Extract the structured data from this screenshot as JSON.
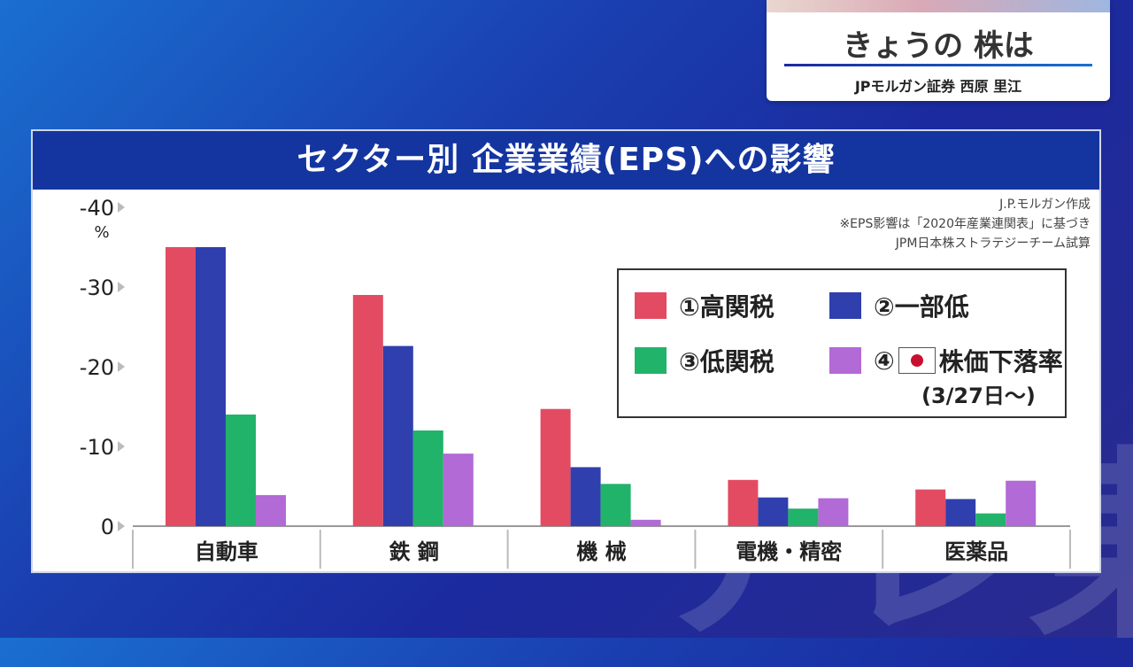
{
  "overlay": {
    "title": "きょうの 株は",
    "presenter": "JPモルガン証券 西原 里江"
  },
  "panel": {
    "header": "セクター別 企業業績(EPS)への影響"
  },
  "credits": [
    "J.P.モルガン作成",
    "※EPS影響は「2020年産業連関表」に基づき",
    "JPM日本株ストラテジーチーム試算"
  ],
  "legend": {
    "items": [
      "①高関税",
      "②一部低",
      "③低関税",
      "④",
      "株価下落率"
    ],
    "note": "(3/27日〜)"
  },
  "colors": {
    "s1": "#e34b63",
    "s2": "#2f3fae",
    "s3": "#22b36a",
    "s4": "#b26ad6",
    "header": "#1435a0"
  },
  "chart_data": {
    "type": "bar",
    "title": "セクター別 企業業績(EPS)への影響",
    "ylabel": "%",
    "ylim": [
      0,
      -40
    ],
    "yticks": [
      "-40",
      "-30",
      "-20",
      "-10",
      "0"
    ],
    "categories": [
      "自動車",
      "鉄 鋼",
      "機 械",
      "電機・精密",
      "医薬品"
    ],
    "series": [
      {
        "name": "①高関税",
        "values": [
          -35,
          -29,
          -14.7,
          -5.8,
          -4.6
        ]
      },
      {
        "name": "②一部低",
        "values": [
          -35,
          -22.6,
          -7.4,
          -3.6,
          -3.4
        ]
      },
      {
        "name": "③低関税",
        "values": [
          -14,
          -12,
          -5.3,
          -2.2,
          -1.6
        ]
      },
      {
        "name": "④ 株価下落率 (3/27日〜)",
        "values": [
          -3.9,
          -9.1,
          -0.8,
          -3.5,
          -5.7
        ]
      }
    ]
  }
}
